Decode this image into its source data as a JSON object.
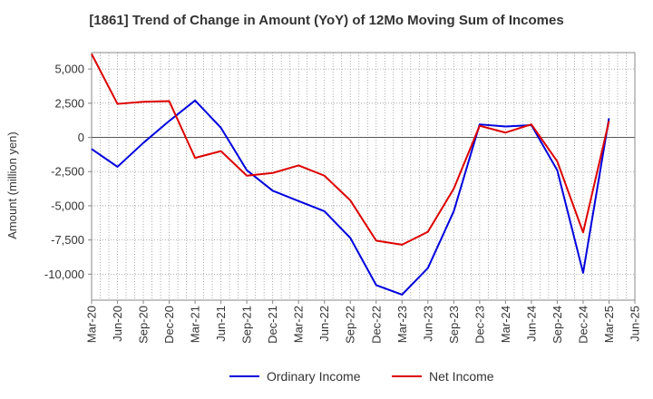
{
  "chart_data": {
    "type": "line",
    "title": "[1861]  Trend of Change in Amount (YoY) of 12Mo Moving Sum of Incomes",
    "xlabel": "",
    "ylabel": "Amount (million yen)",
    "categories": [
      "Mar-20",
      "Jun-20",
      "Sep-20",
      "Dec-20",
      "Mar-21",
      "Jun-21",
      "Sep-21",
      "Dec-21",
      "Mar-22",
      "Jun-22",
      "Sep-22",
      "Dec-22",
      "Mar-23",
      "Jun-23",
      "Sep-23",
      "Dec-23",
      "Mar-24",
      "Jun-24",
      "Sep-24",
      "Dec-24",
      "Mar-25",
      "Jun-25"
    ],
    "ylim": [
      -11900,
      6200
    ],
    "yticks": [
      5000,
      2500,
      0,
      -2500,
      -5000,
      -7500,
      -10000
    ],
    "ytick_labels": [
      "5,000",
      "2,500",
      "0",
      "-2,500",
      "-5,000",
      "-7,500",
      "-10,000"
    ],
    "grid": true,
    "legend_position": "bottom",
    "series": [
      {
        "name": "Ordinary Income",
        "color": "#0000dd",
        "values": [
          -850,
          -2150,
          -400,
          1200,
          2700,
          700,
          -2400,
          -3900,
          -4650,
          -5400,
          -7350,
          -10800,
          -11500,
          -9550,
          -5400,
          950,
          800,
          900,
          -2400,
          -9900,
          1400,
          null
        ]
      },
      {
        "name": "Net Income",
        "color": "#dd0000",
        "values": [
          6100,
          2450,
          2600,
          2650,
          -1500,
          -1000,
          -2800,
          -2600,
          -2050,
          -2800,
          -4600,
          -7550,
          -7850,
          -6900,
          -3750,
          850,
          350,
          950,
          -1750,
          -6950,
          1200,
          null
        ]
      }
    ]
  }
}
